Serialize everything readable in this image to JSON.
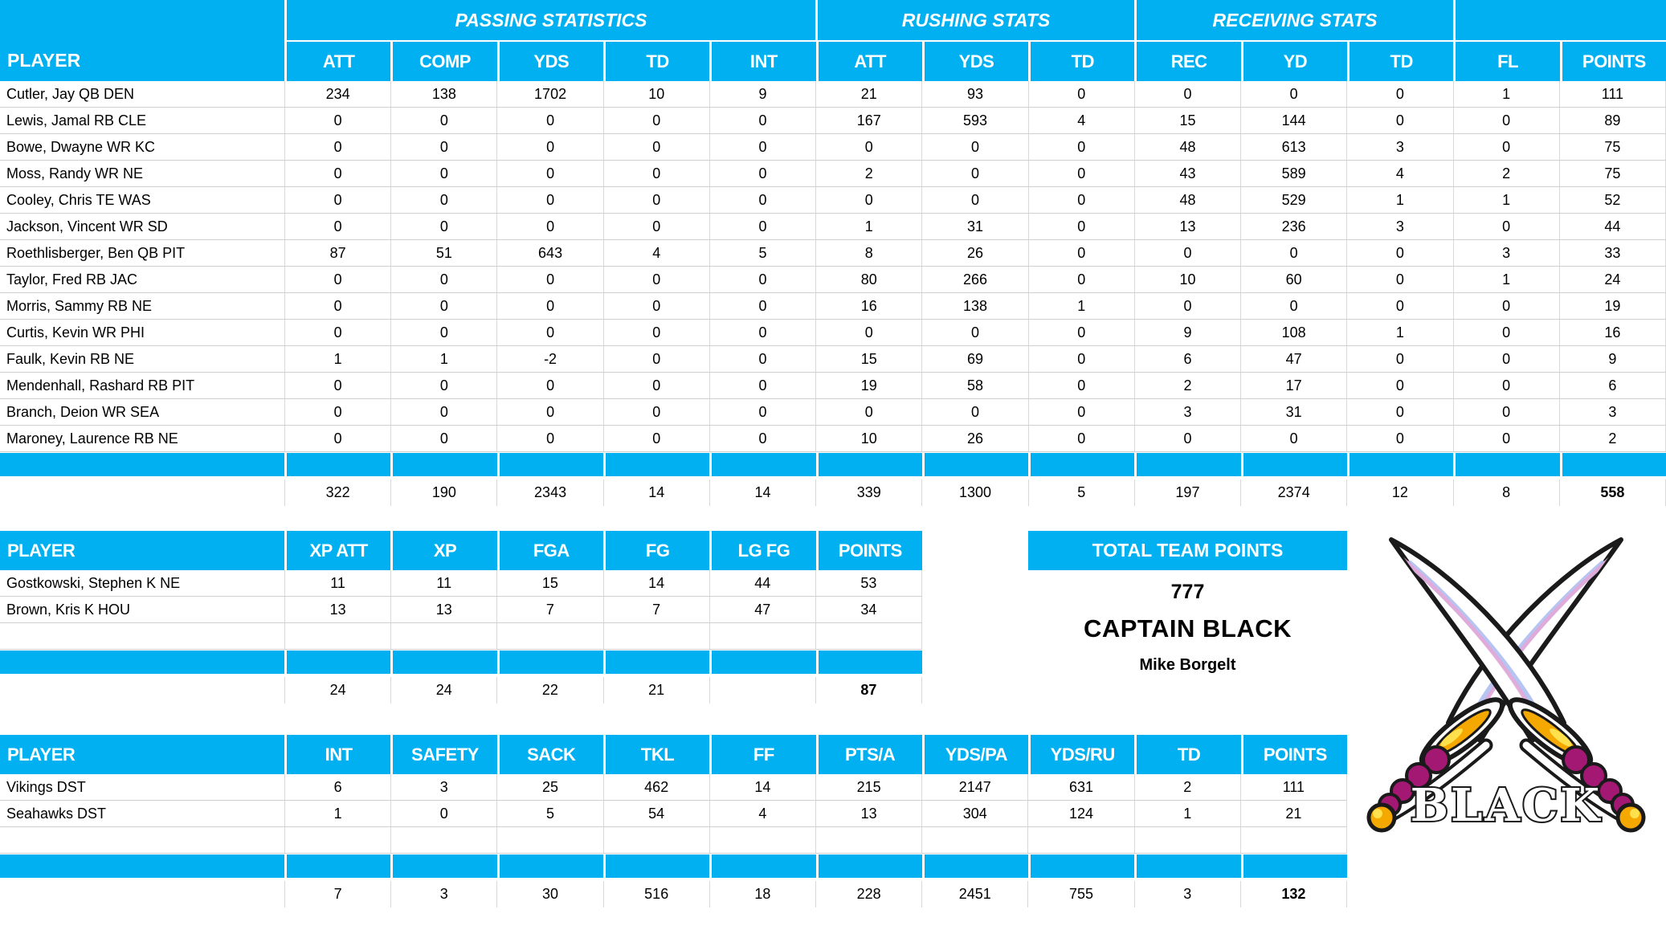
{
  "colors": {
    "accent": "#00B0F0",
    "header_text": "#FFFFFF",
    "body_text": "#000000",
    "gridline": "#D8D8D8",
    "logo_bead": "#A21873",
    "logo_gold": "#F5A800"
  },
  "main_table": {
    "player_header": "PLAYER",
    "group_headers": [
      {
        "label": "PASSING STATISTICS"
      },
      {
        "label": "RUSHING STATS"
      },
      {
        "label": "RECEIVING STATS"
      },
      {
        "label": ""
      }
    ],
    "columns": [
      "ATT",
      "COMP",
      "YDS",
      "TD",
      "INT",
      "ATT",
      "YDS",
      "TD",
      "REC",
      "YD",
      "TD",
      "FL",
      "POINTS"
    ],
    "rows": [
      {
        "player": "Cutler, Jay QB DEN",
        "values": [
          234,
          138,
          1702,
          10,
          9,
          21,
          93,
          0,
          0,
          0,
          0,
          1,
          111
        ]
      },
      {
        "player": "Lewis, Jamal RB CLE",
        "values": [
          0,
          0,
          0,
          0,
          0,
          167,
          593,
          4,
          15,
          144,
          0,
          0,
          89
        ]
      },
      {
        "player": "Bowe, Dwayne WR KC",
        "values": [
          0,
          0,
          0,
          0,
          0,
          0,
          0,
          0,
          48,
          613,
          3,
          0,
          75
        ]
      },
      {
        "player": "Moss, Randy WR NE",
        "values": [
          0,
          0,
          0,
          0,
          0,
          2,
          0,
          0,
          43,
          589,
          4,
          2,
          75
        ]
      },
      {
        "player": "Cooley, Chris TE WAS",
        "values": [
          0,
          0,
          0,
          0,
          0,
          0,
          0,
          0,
          48,
          529,
          1,
          1,
          52
        ]
      },
      {
        "player": "Jackson, Vincent WR SD",
        "values": [
          0,
          0,
          0,
          0,
          0,
          1,
          31,
          0,
          13,
          236,
          3,
          0,
          44
        ]
      },
      {
        "player": "Roethlisberger, Ben QB PIT",
        "values": [
          87,
          51,
          643,
          4,
          5,
          8,
          26,
          0,
          0,
          0,
          0,
          3,
          33
        ]
      },
      {
        "player": "Taylor, Fred RB JAC",
        "values": [
          0,
          0,
          0,
          0,
          0,
          80,
          266,
          0,
          10,
          60,
          0,
          1,
          24
        ]
      },
      {
        "player": "Morris, Sammy RB NE",
        "values": [
          0,
          0,
          0,
          0,
          0,
          16,
          138,
          1,
          0,
          0,
          0,
          0,
          19
        ]
      },
      {
        "player": "Curtis, Kevin WR PHI",
        "values": [
          0,
          0,
          0,
          0,
          0,
          0,
          0,
          0,
          9,
          108,
          1,
          0,
          16
        ]
      },
      {
        "player": "Faulk, Kevin RB NE",
        "values": [
          1,
          1,
          -2,
          0,
          0,
          15,
          69,
          0,
          6,
          47,
          0,
          0,
          9
        ]
      },
      {
        "player": "Mendenhall, Rashard RB PIT",
        "values": [
          0,
          0,
          0,
          0,
          0,
          19,
          58,
          0,
          2,
          17,
          0,
          0,
          6
        ]
      },
      {
        "player": "Branch, Deion WR SEA",
        "values": [
          0,
          0,
          0,
          0,
          0,
          0,
          0,
          0,
          3,
          31,
          0,
          0,
          3
        ]
      },
      {
        "player": "Maroney, Laurence RB NE",
        "values": [
          0,
          0,
          0,
          0,
          0,
          10,
          26,
          0,
          0,
          0,
          0,
          0,
          2
        ]
      }
    ],
    "totals": [
      "322",
      "190",
      "2343",
      "14",
      "14",
      "339",
      "1300",
      "5",
      "197",
      "2374",
      "12",
      "8",
      "558"
    ]
  },
  "kicker_table": {
    "player_header": "PLAYER",
    "columns": [
      "XP ATT",
      "XP",
      "FGA",
      "FG",
      "LG FG",
      "POINTS"
    ],
    "rows": [
      {
        "player": "Gostkowski, Stephen K NE",
        "values": [
          11,
          11,
          15,
          14,
          44,
          53
        ]
      },
      {
        "player": "Brown, Kris K HOU",
        "values": [
          13,
          13,
          7,
          7,
          47,
          34
        ]
      }
    ],
    "totals": [
      "24",
      "24",
      "22",
      "21",
      "",
      "87"
    ]
  },
  "defense_table": {
    "player_header": "PLAYER",
    "columns": [
      "INT",
      "SAFETY",
      "SACK",
      "TKL",
      "FF",
      "PTS/A",
      "YDS/PA",
      "YDS/RU",
      "TD",
      "POINTS"
    ],
    "rows": [
      {
        "player": "Vikings DST",
        "values": [
          6,
          3,
          25,
          462,
          14,
          215,
          2147,
          631,
          2,
          111
        ]
      },
      {
        "player": "Seahawks DST",
        "values": [
          1,
          0,
          5,
          54,
          4,
          13,
          304,
          124,
          1,
          21
        ]
      }
    ],
    "totals": [
      "7",
      "3",
      "30",
      "516",
      "18",
      "228",
      "2451",
      "755",
      "3",
      "132"
    ]
  },
  "team_summary": {
    "title": "TOTAL TEAM POINTS",
    "total_points": "777",
    "team_name": "CAPTAIN BLACK",
    "owner_name": "Mike Borgelt"
  },
  "logo": {
    "caption": "BLACK"
  }
}
